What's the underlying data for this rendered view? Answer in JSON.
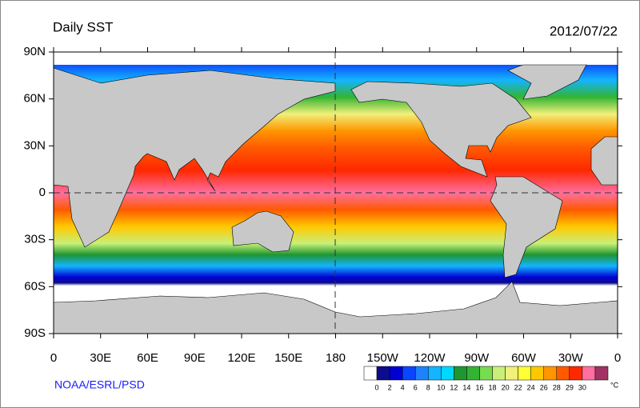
{
  "header": {
    "title": "Daily SST",
    "date": "2012/07/22"
  },
  "map": {
    "lat_labels": [
      "90N",
      "60N",
      "30N",
      "0",
      "30S",
      "60S",
      "90S"
    ],
    "lon_labels": [
      "0",
      "30E",
      "60E",
      "90E",
      "120E",
      "150E",
      "180",
      "150W",
      "120W",
      "90W",
      "60W",
      "30W",
      "0"
    ]
  },
  "colorbar": {
    "colors": [
      "#ffffff",
      "#0c0c8c",
      "#0000d2",
      "#0a46ff",
      "#1e82ff",
      "#14b4ff",
      "#00d8ff",
      "#1e9632",
      "#32b432",
      "#78dc50",
      "#c8f078",
      "#f0f07a",
      "#ffff32",
      "#ffc800",
      "#ff9600",
      "#ff5a00",
      "#ff2800",
      "#ff6ea0",
      "#a03264"
    ],
    "labels": [
      "0",
      "2",
      "4",
      "6",
      "8",
      "10",
      "12",
      "14",
      "16",
      "18",
      "20",
      "22",
      "24",
      "26",
      "28",
      "29",
      "30"
    ],
    "unit": "°C"
  },
  "credit": "NOAA/ESRL/PSD"
}
